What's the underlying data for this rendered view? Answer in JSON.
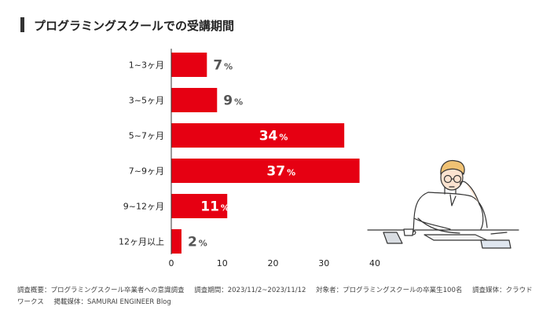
{
  "chart_data": {
    "type": "bar",
    "orientation": "horizontal",
    "title": "プログラミングスクールでの受講期間",
    "categories": [
      "1~3ヶ月",
      "3~5ヶ月",
      "5~7ヶ月",
      "7~9ヶ月",
      "9~12ヶ月",
      "12ヶ月以上"
    ],
    "values": [
      7,
      9,
      34,
      37,
      11,
      2
    ],
    "value_suffix": "%",
    "x_ticks": [
      "0",
      "10",
      "20",
      "30",
      "40"
    ],
    "xlim": [
      0,
      40
    ],
    "grid": false,
    "legend": "none",
    "bar_color": "#e60012"
  },
  "footnote": {
    "survey_summary": "調査概要：プログラミングスクール卒業者への意識調査",
    "survey_period": "調査期間：2023/11/2~2023/11/12",
    "target": "対象者：プログラミングスクールの卒業生100名",
    "survey_media": "調査媒体：クラウドワークス",
    "published": "掲載媒体：SAMURAI ENGINEER Blog"
  },
  "colors": {
    "accent": "#e60012",
    "title_marker": "#333333",
    "label_outside": "#555555",
    "label_inside": "#ffffff"
  },
  "illustration": {
    "icon": "person-at-desk-icon"
  }
}
